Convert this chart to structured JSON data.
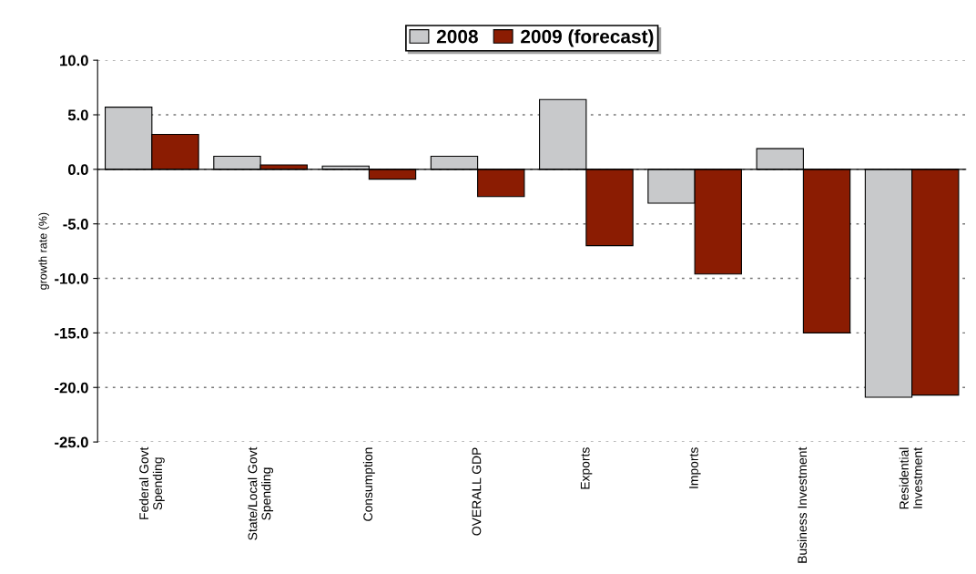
{
  "chart_data": {
    "type": "bar",
    "ylabel": "growth rate (%)",
    "categories": [
      "Federal Govt\nSpending",
      "State/Local Govt\nSpending",
      "Consumption",
      "OVERALL GDP",
      "Exports",
      "Imports",
      "Business Investment",
      "Residential\nInvestment"
    ],
    "series": [
      {
        "name": "2008",
        "color": "#c8c9cb",
        "values": [
          5.7,
          1.2,
          0.3,
          1.2,
          6.4,
          -3.1,
          1.9,
          -20.9
        ]
      },
      {
        "name": "2009 (forecast)",
        "color": "#8b1c02",
        "values": [
          3.2,
          0.4,
          -0.9,
          -2.5,
          -7.0,
          -9.6,
          -15.0,
          -20.7
        ]
      }
    ],
    "ylim": [
      -25,
      10
    ],
    "yticks": [
      {
        "value": -25,
        "label": "-25.0"
      },
      {
        "value": -20,
        "label": "-20.0"
      },
      {
        "value": -15,
        "label": "-15.0"
      },
      {
        "value": -10,
        "label": "-10.0"
      },
      {
        "value": -5,
        "label": "-5.0"
      },
      {
        "value": 0,
        "label": "0.0"
      },
      {
        "value": 5,
        "label": "5.0"
      },
      {
        "value": 10,
        "label": "10.0"
      }
    ],
    "grid": "y",
    "legend": "top"
  }
}
